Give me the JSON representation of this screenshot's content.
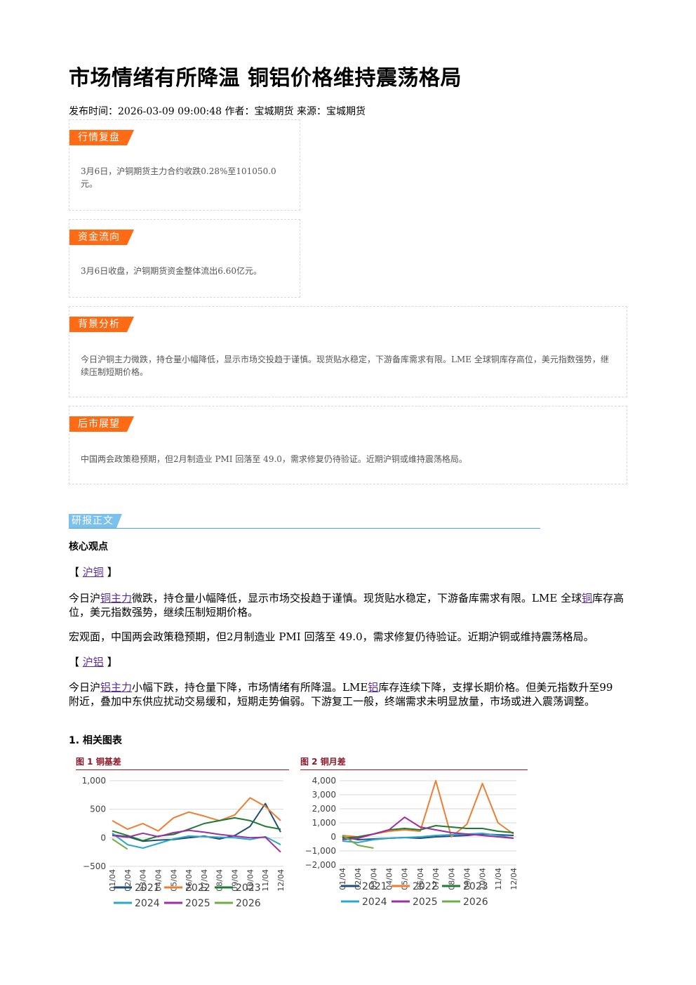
{
  "title": "市场情绪有所降温 铜铝价格维持震荡格局",
  "meta": "发布时间：2026-03-09 09:00:48 作者：宝城期货 来源：宝城期货",
  "sections": {
    "market_review": {
      "tag": "行情复盘",
      "text": "3月6日，沪铜期货主力合约收跌0.28%至101050.0元。"
    },
    "capital_flow": {
      "tag": "资金流向",
      "text": "3月6日收盘，沪铜期货资金整体流出6.60亿元。"
    },
    "background": {
      "tag": "背景分析",
      "text": "今日沪铜主力微跌，持仓量小幅降低，显示市场交投趋于谨慎。现货贴水稳定，下游备库需求有限。LME 全球铜库存高位，美元指数强势，继续压制短期价格。"
    },
    "outlook": {
      "tag": "后市展望",
      "text": "中国两会政策稳预期，但2月制造业 PMI 回落至 49.0，需求修复仍待验证。近期沪铜或维持震荡格局。"
    }
  },
  "body": {
    "header": "研报正文",
    "core_heading": "核心观点",
    "copper": {
      "bracket_open": "【",
      "bracket_close": "】",
      "label": "沪铜",
      "p1_a": "今日沪",
      "p1_link1": "铜主力",
      "p1_b": "微跌，持仓量小幅降低，显示市场交投趋于谨慎。现货贴水稳定，下游备库需求有限。LME 全球",
      "p1_link2": "铜",
      "p1_c": "库存高位，美元指数强势，继续压制短期价格。",
      "p2": "宏观面，中国两会政策稳预期，但2月制造业 PMI 回落至 49.0，需求修复仍待验证。近期沪铜或维持震荡格局。"
    },
    "aluminum": {
      "bracket_open": "【",
      "bracket_close": "】",
      "label": "沪铝",
      "p1_a": "今日沪",
      "p1_link1": "铝主力",
      "p1_b": "小幅下跌，持仓量下降，市场情绪有所降温。LME",
      "p1_link2": "铝",
      "p1_c": "库存连续下降，支撑长期价格。但美元指数升至99 附近，叠加中东供应扰动交易缓和，短期走势偏弱。下游复工一般，终端需求未明显放量，市场或进入震荡调整。"
    },
    "charts_heading": "1. 相关图表"
  },
  "chart_data": [
    {
      "type": "line",
      "title": "图 1 铜基差",
      "xlabel": "",
      "ylabel": "",
      "x": [
        "01/04",
        "02/04",
        "03/04",
        "04/04",
        "05/04",
        "06/04",
        "07/04",
        "08/04",
        "09/04",
        "10/04",
        "11/04",
        "12/04"
      ],
      "ylim": [
        -500,
        1000
      ],
      "yticks": [
        -500,
        0,
        500,
        1000
      ],
      "ytick_labels": [
        "−500",
        "0",
        "500",
        "1,000"
      ],
      "grid": true,
      "legend": "bottom",
      "series": [
        {
          "name": "2021",
          "color": "#1f4e79",
          "values": [
            50,
            20,
            -60,
            -40,
            -30,
            0,
            30,
            -20,
            40,
            200,
            600,
            100
          ]
        },
        {
          "name": "2022",
          "color": "#ed7d31",
          "values": [
            300,
            150,
            250,
            120,
            350,
            450,
            380,
            300,
            400,
            700,
            550,
            300
          ]
        },
        {
          "name": "2023",
          "color": "#1e7b34",
          "values": [
            120,
            40,
            -50,
            30,
            60,
            150,
            250,
            300,
            350,
            300,
            200,
            150
          ]
        },
        {
          "name": "2024",
          "color": "#2aa8c8",
          "values": [
            80,
            -120,
            -180,
            -100,
            -20,
            30,
            20,
            10,
            0,
            -30,
            20,
            -120
          ]
        },
        {
          "name": "2025",
          "color": "#9e2fa0",
          "values": [
            40,
            10,
            80,
            20,
            90,
            130,
            100,
            60,
            30,
            0,
            10,
            -250
          ]
        },
        {
          "name": "2026",
          "color": "#70ad47",
          "values": [
            -20,
            -200,
            null,
            null,
            null,
            null,
            null,
            null,
            null,
            null,
            null,
            null
          ]
        }
      ]
    },
    {
      "type": "line",
      "title": "图 2 铜月差",
      "xlabel": "",
      "ylabel": "",
      "x": [
        "01/04",
        "02/04",
        "03/04",
        "04/04",
        "05/04",
        "06/04",
        "07/04",
        "08/04",
        "09/04",
        "10/04",
        "11/04",
        "12/04"
      ],
      "ylim": [
        -2000,
        4000
      ],
      "yticks": [
        -2000,
        -1000,
        0,
        1000,
        2000,
        3000,
        4000
      ],
      "ytick_labels": [
        "−2,000",
        "−1,000",
        "0",
        "1,000",
        "2,000",
        "3,000",
        "4,000"
      ],
      "grid": true,
      "legend": "bottom",
      "series": [
        {
          "name": "2021",
          "color": "#1f4e79",
          "values": [
            0,
            -200,
            -150,
            -100,
            -50,
            -100,
            0,
            50,
            100,
            200,
            150,
            100
          ]
        },
        {
          "name": "2022",
          "color": "#ed7d31",
          "values": [
            100,
            0,
            200,
            400,
            500,
            400,
            4000,
            0,
            900,
            3800,
            1000,
            200
          ]
        },
        {
          "name": "2023",
          "color": "#1e7b34",
          "values": [
            -100,
            0,
            200,
            500,
            600,
            500,
            800,
            700,
            600,
            600,
            400,
            300
          ]
        },
        {
          "name": "2024",
          "color": "#2aa8c8",
          "values": [
            -300,
            -400,
            -200,
            -100,
            -50,
            0,
            100,
            150,
            200,
            250,
            100,
            -100
          ]
        },
        {
          "name": "2025",
          "color": "#9e2fa0",
          "values": [
            -200,
            -100,
            200,
            500,
            1400,
            700,
            500,
            300,
            200,
            100,
            0,
            -100
          ]
        },
        {
          "name": "2026",
          "color": "#70ad47",
          "values": [
            100,
            -600,
            -800,
            null,
            null,
            null,
            null,
            null,
            null,
            null,
            null,
            null
          ]
        }
      ]
    }
  ]
}
